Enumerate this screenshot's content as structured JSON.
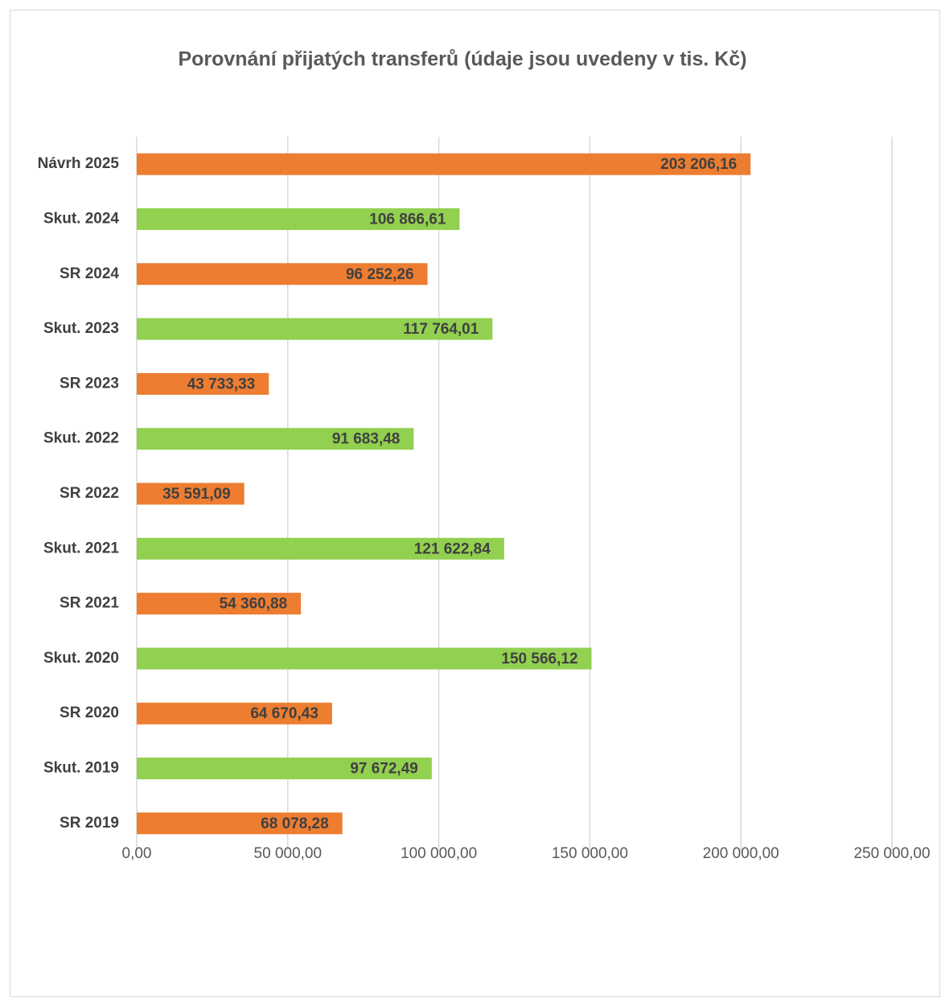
{
  "chart_data": {
    "type": "bar",
    "orientation": "horizontal",
    "title": "Porovnání přijatých transferů (údaje jsou uvedeny v tis. Kč)",
    "categories": [
      "Návrh 2025",
      "Skut. 2024",
      "SR 2024",
      "Skut. 2023",
      "SR 2023",
      "Skut. 2022",
      "SR 2022",
      "Skut. 2021",
      "SR 2021",
      "Skut. 2020",
      "SR 2020",
      "Skut. 2019",
      "SR 2019"
    ],
    "values": [
      203206.16,
      106866.61,
      96252.26,
      117764.01,
      43733.33,
      91683.48,
      35591.09,
      121622.84,
      54360.88,
      150566.12,
      64670.43,
      97672.49,
      68078.28
    ],
    "value_labels": [
      "203 206,16",
      "106 866,61",
      "96 252,26",
      "117 764,01",
      "43 733,33",
      "91 683,48",
      "35 591,09",
      "121 622,84",
      "54 360,88",
      "150 566,12",
      "64 670,43",
      "97 672,49",
      "68 078,28"
    ],
    "colors": [
      "#ed7d31",
      "#92d050",
      "#ed7d31",
      "#92d050",
      "#ed7d31",
      "#92d050",
      "#ed7d31",
      "#92d050",
      "#ed7d31",
      "#92d050",
      "#ed7d31",
      "#92d050",
      "#ed7d31"
    ],
    "xlim": [
      0,
      250000
    ],
    "xticks": [
      {
        "value": 0,
        "label": "0,00"
      },
      {
        "value": 50000,
        "label": "50 000,00"
      },
      {
        "value": 100000,
        "label": "100 000,00"
      },
      {
        "value": 150000,
        "label": "150 000,00"
      },
      {
        "value": 200000,
        "label": "200 000,00"
      },
      {
        "value": 250000,
        "label": "250 000,00"
      }
    ],
    "grid": true
  }
}
